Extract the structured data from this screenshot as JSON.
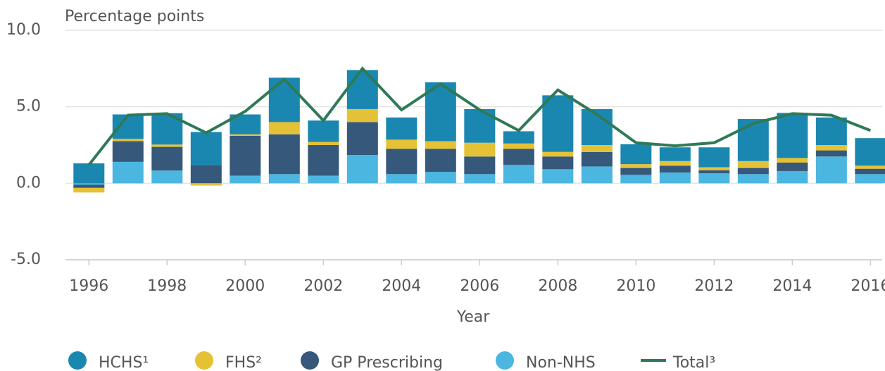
{
  "chart_data": {
    "type": "bar",
    "stacked": true,
    "y_axis_label": "Percentage points",
    "x_axis_label": "Year",
    "x": [
      1996,
      1997,
      1998,
      1999,
      2000,
      2001,
      2002,
      2003,
      2004,
      2005,
      2006,
      2007,
      2008,
      2009,
      2010,
      2011,
      2012,
      2013,
      2014,
      2015,
      2016
    ],
    "series": [
      {
        "name": "HCHS¹",
        "color": "#1a87b0",
        "values": [
          1.3,
          1.6,
          2.05,
          2.15,
          1.3,
          2.9,
          1.4,
          2.55,
          1.45,
          3.85,
          2.2,
          0.8,
          3.7,
          2.35,
          1.3,
          0.9,
          1.3,
          2.75,
          2.95,
          1.8,
          1.8
        ]
      },
      {
        "name": "FHS²",
        "color": "#e5c235",
        "values": [
          -0.3,
          0.15,
          0.15,
          -0.15,
          0.1,
          0.8,
          0.2,
          0.85,
          0.6,
          0.5,
          0.9,
          0.35,
          0.3,
          0.45,
          0.25,
          0.3,
          0.2,
          0.45,
          0.3,
          0.35,
          0.2
        ]
      },
      {
        "name": "GP Prescribing",
        "color": "#36587a",
        "values": [
          -0.2,
          1.35,
          1.55,
          1.2,
          2.6,
          2.6,
          2.0,
          2.15,
          1.65,
          1.5,
          1.15,
          1.05,
          0.83,
          0.95,
          0.45,
          0.45,
          0.2,
          0.4,
          0.55,
          0.4,
          0.35
        ]
      },
      {
        "name": "Non-NHS",
        "color": "#4bb6e0",
        "values": [
          -0.1,
          1.4,
          0.83,
          0,
          0.5,
          0.6,
          0.5,
          1.85,
          0.6,
          0.75,
          0.6,
          1.2,
          0.92,
          1.1,
          0.55,
          0.7,
          0.65,
          0.6,
          0.8,
          1.75,
          0.6
        ]
      },
      {
        "name": "Total³",
        "type": "line",
        "color": "#2e7a57",
        "values": [
          1.2,
          4.45,
          4.55,
          3.3,
          4.7,
          6.8,
          4.1,
          7.5,
          4.8,
          6.5,
          4.8,
          3.45,
          6.1,
          4.5,
          2.65,
          2.45,
          2.65,
          3.9,
          4.55,
          4.45,
          3.45
        ]
      }
    ],
    "xlim": [
      1995.4,
      2016.3
    ],
    "xticks": [
      1996,
      1998,
      2000,
      2002,
      2004,
      2006,
      2008,
      2010,
      2012,
      2014,
      2016
    ],
    "ylim": [
      -5,
      10
    ],
    "yticks": [
      {
        "value": -5,
        "label": "-5.0"
      },
      {
        "value": 0,
        "label": "0.0"
      },
      {
        "value": 5,
        "label": "5.0"
      },
      {
        "value": 10,
        "label": "10.0"
      }
    ],
    "grid": true,
    "legend": "bottom"
  }
}
